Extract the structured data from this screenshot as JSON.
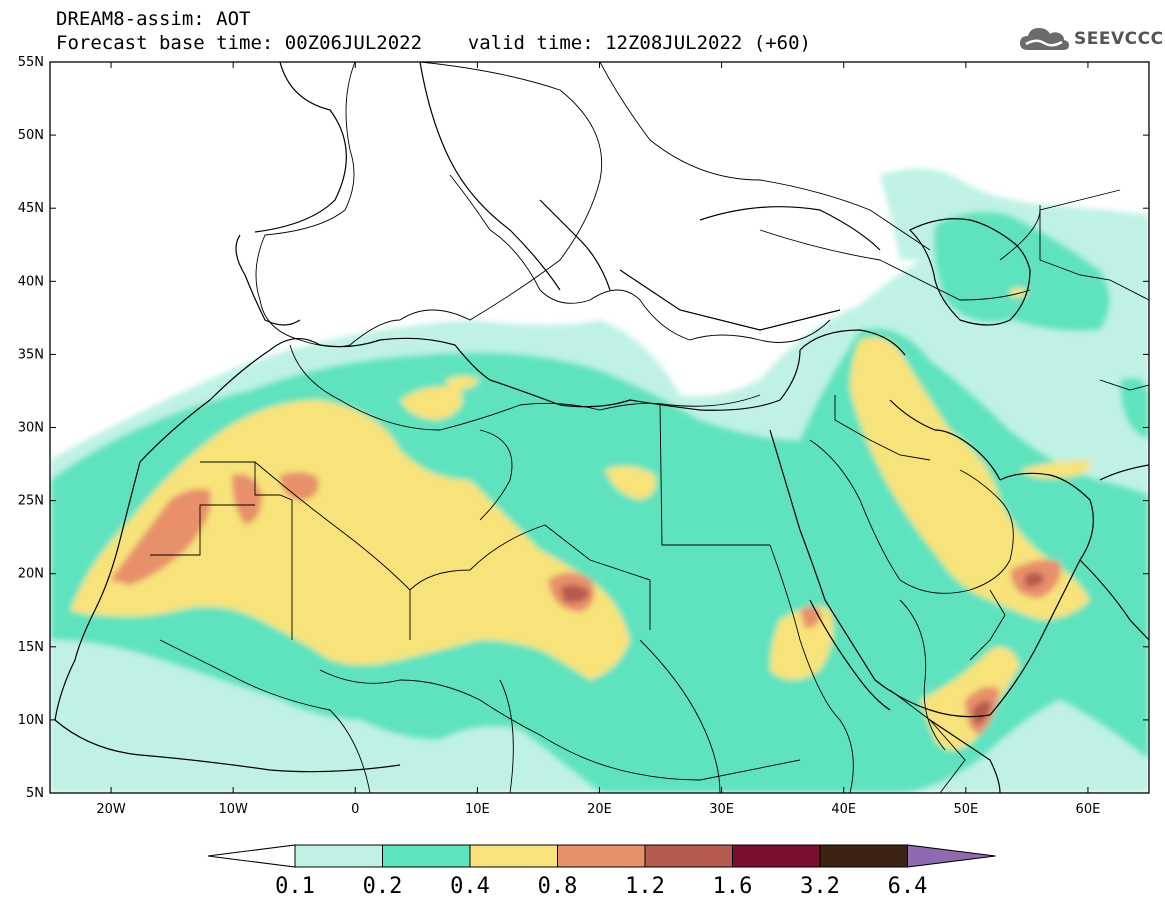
{
  "header": {
    "title_line1": "DREAM8-assim: AOT",
    "title_line2": "Forecast base time: 00Z06JUL2022    valid time: 12Z08JUL2022 (+60)"
  },
  "logo": {
    "text": "SEEVCCC",
    "icon": "cloud-icon"
  },
  "map": {
    "lon_range": [
      -25,
      65
    ],
    "lat_range": [
      5,
      55
    ],
    "lat_labels": [
      "55N",
      "50N",
      "45N",
      "40N",
      "35N",
      "30N",
      "25N",
      "20N",
      "15N",
      "10N",
      "5N"
    ],
    "lat_values": [
      55,
      50,
      45,
      40,
      35,
      30,
      25,
      20,
      15,
      10,
      5
    ],
    "lon_labels": [
      "20W",
      "10W",
      "0",
      "10E",
      "20E",
      "30E",
      "40E",
      "50E",
      "60E"
    ],
    "lon_values": [
      -20,
      -10,
      0,
      10,
      20,
      30,
      40,
      50,
      60
    ]
  },
  "colorbar": {
    "labels": [
      "0.1",
      "0.2",
      "0.4",
      "0.8",
      "1.2",
      "1.6",
      "3.2",
      "6.4"
    ],
    "colors": [
      "#bff2e5",
      "#5ee3bf",
      "#f7e37a",
      "#e8906a",
      "#b55a4e",
      "#7a0e2c",
      "#3b2211",
      "#8e6bb0"
    ]
  }
}
